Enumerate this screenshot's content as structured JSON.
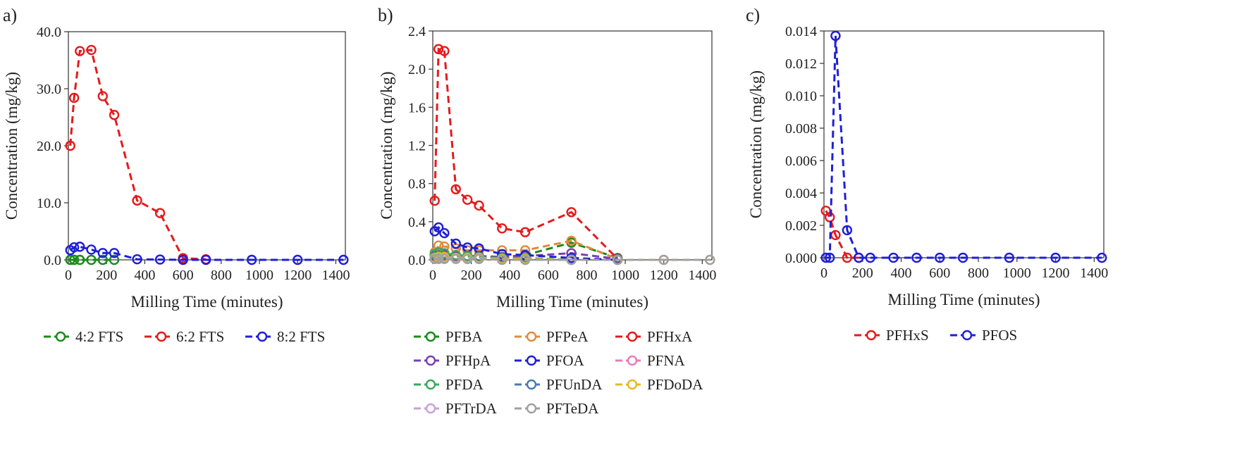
{
  "chart_data": [
    {
      "type": "line",
      "panel_label": "a)",
      "xlabel": "Milling Time (minutes)",
      "ylabel": "Concentration (mg/kg)",
      "xlim": [
        0,
        1450
      ],
      "ylim": [
        0,
        40
      ],
      "xticks": [
        0,
        200,
        400,
        600,
        800,
        1000,
        1200,
        1400
      ],
      "yticks": [
        0,
        10,
        20,
        30,
        40
      ],
      "xtick_labels": [
        "0",
        "200",
        "400",
        "600",
        "800",
        "1000",
        "1200",
        "1400"
      ],
      "ytick_labels": [
        "0.0",
        "10.0",
        "20.0",
        "30.0",
        "40.0"
      ],
      "grid": false,
      "legend_position": "bottom",
      "series": [
        {
          "name": "4:2 FTS",
          "color": "#1a8a1a",
          "x": [
            10,
            30,
            60,
            120,
            180,
            240
          ],
          "y": [
            0,
            0,
            0,
            0,
            0,
            0
          ]
        },
        {
          "name": "6:2 FTS",
          "color": "#e41a1c",
          "x": [
            10,
            30,
            60,
            120,
            180,
            240,
            360,
            480,
            600,
            720
          ],
          "y": [
            20.0,
            28.4,
            36.6,
            36.8,
            28.7,
            25.4,
            10.4,
            8.2,
            0.3,
            0.1
          ]
        },
        {
          "name": "8:2 FTS",
          "color": "#1f1fd6",
          "x": [
            10,
            30,
            60,
            120,
            180,
            240,
            360,
            480,
            600,
            720,
            960,
            1200,
            1440
          ],
          "y": [
            1.7,
            2.2,
            2.3,
            1.8,
            1.2,
            1.2,
            0.1,
            0.05,
            0,
            0,
            0,
            0,
            0
          ]
        }
      ]
    },
    {
      "type": "line",
      "panel_label": "b)",
      "xlabel": "Milling Time (minutes)",
      "ylabel": "Concentration (mg/kg)",
      "xlim": [
        0,
        1450
      ],
      "ylim": [
        0,
        2.4
      ],
      "xticks": [
        0,
        200,
        400,
        600,
        800,
        1000,
        1200,
        1400
      ],
      "yticks": [
        0,
        0.4,
        0.8,
        1.2,
        1.6,
        2.0,
        2.4
      ],
      "xtick_labels": [
        "0",
        "200",
        "400",
        "600",
        "800",
        "1000",
        "1200",
        "1400"
      ],
      "ytick_labels": [
        "0.0",
        "0.4",
        "0.8",
        "1.2",
        "1.6",
        "2.0",
        "2.4"
      ],
      "grid": false,
      "legend_position": "bottom",
      "series": [
        {
          "name": "PFBA",
          "color": "#1a8a1a",
          "x": [
            10,
            30,
            60,
            120,
            180,
            240,
            360,
            480,
            720,
            960
          ],
          "y": [
            0.05,
            0.07,
            0.06,
            0.05,
            0.04,
            0.03,
            0.03,
            0.05,
            0.18,
            0.02
          ]
        },
        {
          "name": "PFPeA",
          "color": "#e08a3c",
          "x": [
            10,
            30,
            60,
            120,
            180,
            240,
            360,
            480,
            720,
            960
          ],
          "y": [
            0.08,
            0.15,
            0.14,
            0.12,
            0.1,
            0.1,
            0.1,
            0.1,
            0.2,
            0.01
          ]
        },
        {
          "name": "PFHxA",
          "color": "#e41a1c",
          "x": [
            10,
            30,
            60,
            120,
            180,
            240,
            360,
            480,
            720,
            960
          ],
          "y": [
            0.62,
            2.21,
            2.19,
            0.74,
            0.63,
            0.57,
            0.33,
            0.29,
            0.5,
            0.01
          ]
        },
        {
          "name": "PFHpA",
          "color": "#7b3fb0",
          "x": [
            10,
            30,
            60,
            120,
            180,
            240,
            360,
            480,
            720,
            960
          ],
          "y": [
            0.04,
            0.05,
            0.05,
            0.04,
            0.04,
            0.04,
            0.03,
            0.04,
            0.07,
            0.01
          ]
        },
        {
          "name": "PFOA",
          "color": "#1f1fd6",
          "x": [
            10,
            30,
            60,
            120,
            180,
            240,
            360,
            480,
            720,
            960
          ],
          "y": [
            0.3,
            0.34,
            0.28,
            0.17,
            0.13,
            0.12,
            0.06,
            0.05,
            0.02,
            0.0
          ]
        },
        {
          "name": "PFNA",
          "color": "#e87bb8",
          "x": [
            10,
            30,
            60,
            120,
            180,
            240,
            360,
            480,
            720
          ],
          "y": [
            0.02,
            0.03,
            0.03,
            0.02,
            0.02,
            0.02,
            0.01,
            0.01,
            0.0
          ]
        },
        {
          "name": "PFDA",
          "color": "#3aa85e",
          "x": [
            10,
            30,
            60,
            120,
            180,
            240,
            360,
            480,
            720
          ],
          "y": [
            0.06,
            0.08,
            0.07,
            0.05,
            0.04,
            0.03,
            0.02,
            0.02,
            0.0
          ]
        },
        {
          "name": "PFUnDA",
          "color": "#4a7ab0",
          "x": [
            10,
            30,
            60,
            120,
            180,
            240,
            360,
            480,
            720
          ],
          "y": [
            0.02,
            0.02,
            0.02,
            0.02,
            0.01,
            0.01,
            0.01,
            0.01,
            0.0
          ]
        },
        {
          "name": "PFDoDA",
          "color": "#e6b820",
          "x": [
            10,
            30,
            60,
            120,
            180,
            240,
            360,
            480,
            720,
            960,
            1200,
            1440
          ],
          "y": [
            0.02,
            0.03,
            0.03,
            0.02,
            0.02,
            0.02,
            0.01,
            0.01,
            0.0,
            0.0,
            0.0,
            0.0
          ]
        },
        {
          "name": "PFTrDA",
          "color": "#c8a0d8",
          "x": [
            10,
            30,
            60,
            120,
            180,
            240,
            360,
            480,
            720
          ],
          "y": [
            0.01,
            0.01,
            0.01,
            0.01,
            0.01,
            0.01,
            0.0,
            0.0,
            0.0
          ]
        },
        {
          "name": "PFTeDA",
          "color": "#a0a0a0",
          "x": [
            10,
            30,
            60,
            120,
            180,
            240,
            360,
            480,
            720,
            960,
            1200,
            1440
          ],
          "y": [
            0.01,
            0.01,
            0.01,
            0.01,
            0.01,
            0.01,
            0.0,
            0.0,
            0.0,
            0.0,
            0.0,
            0.0
          ]
        }
      ]
    },
    {
      "type": "line",
      "panel_label": "c)",
      "xlabel": "Milling Time (minutes)",
      "ylabel": "Concentration (mg/kg)",
      "xlim": [
        0,
        1450
      ],
      "ylim": [
        0,
        0.014
      ],
      "xticks": [
        0,
        200,
        400,
        600,
        800,
        1000,
        1200,
        1400
      ],
      "yticks": [
        0,
        0.002,
        0.004,
        0.006,
        0.008,
        0.01,
        0.012,
        0.014
      ],
      "xtick_labels": [
        "0",
        "200",
        "400",
        "600",
        "800",
        "1000",
        "1200",
        "1400"
      ],
      "ytick_labels": [
        "0.000",
        "0.002",
        "0.004",
        "0.006",
        "0.008",
        "0.010",
        "0.012",
        "0.014"
      ],
      "grid": false,
      "legend_position": "bottom",
      "series": [
        {
          "name": "PFHxS",
          "color": "#e41a1c",
          "x": [
            10,
            30,
            60,
            120,
            180
          ],
          "y": [
            0.0029,
            0.0025,
            0.0014,
            0.0,
            0.0
          ]
        },
        {
          "name": "PFOS",
          "color": "#1f1fd6",
          "x": [
            10,
            30,
            60,
            120,
            180,
            240,
            360,
            480,
            600,
            720,
            960,
            1200,
            1440
          ],
          "y": [
            0.0,
            0.0,
            0.0137,
            0.0017,
            0.0,
            0.0,
            0.0,
            0.0,
            0.0,
            0.0,
            0.0,
            0.0,
            0.0
          ]
        }
      ]
    }
  ]
}
